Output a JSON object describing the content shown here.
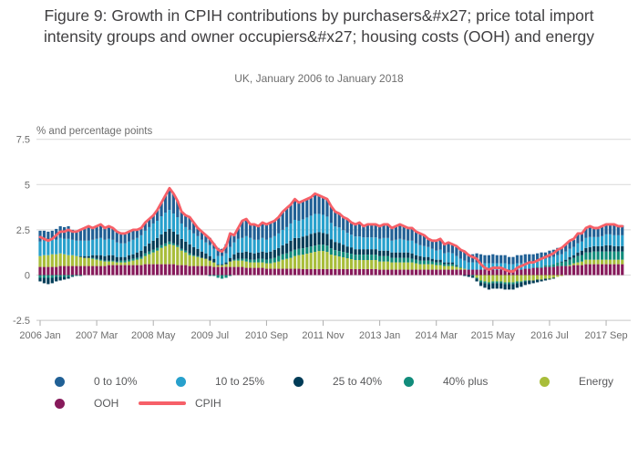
{
  "header": {
    "title": "Figure 9: Growth in CPIH contributions by purchasers&#x27; price total import intensity groups and owner occupiers&#x27; housing costs (OOH) and energy",
    "subtitle": "UK, January 2006 to January 2018"
  },
  "legend": {
    "items": [
      {
        "label": "0 to 10%",
        "color": "#206095",
        "swatch": "dot"
      },
      {
        "label": "10 to 25%",
        "color": "#27A0CC",
        "swatch": "dot"
      },
      {
        "label": "25 to 40%",
        "color": "#003C57",
        "swatch": "dot"
      },
      {
        "label": "40% plus",
        "color": "#118C7B",
        "swatch": "dot"
      },
      {
        "label": "Energy",
        "color": "#A8BD3A",
        "swatch": "dot"
      },
      {
        "label": "OOH",
        "color": "#871A5B",
        "swatch": "dot"
      },
      {
        "label": "CPIH",
        "color": "#F66068",
        "swatch": "line"
      }
    ]
  },
  "chart_data": {
    "type": "bar",
    "stacked": true,
    "unit_label": "% and percentage points",
    "x_start": "2006 Jan",
    "x_end": "2018 Jan",
    "months_count": 145,
    "ylim": [
      -2.5,
      7.5
    ],
    "yticks": [
      -2.5,
      0,
      2.5,
      5,
      7.5
    ],
    "ytick_labels": [
      "-2.5",
      "0",
      "2.5",
      "5",
      "7.5"
    ],
    "xtick_indices": [
      0,
      14,
      28,
      42,
      56,
      70,
      84,
      98,
      112,
      126,
      140
    ],
    "xtick_labels": [
      "2006 Jan",
      "2007 Mar",
      "2008 May",
      "2009 Jul",
      "2010 Sep",
      "2011 Nov",
      "2013 Jan",
      "2014 Mar",
      "2015 May",
      "2016 Jul",
      "2017 Sep"
    ],
    "grid": true,
    "legend_position": "bottom",
    "series": [
      {
        "name": "OOH",
        "color": "#871A5B",
        "values": [
          0.45,
          0.45,
          0.45,
          0.45,
          0.45,
          0.5,
          0.5,
          0.5,
          0.5,
          0.5,
          0.5,
          0.5,
          0.5,
          0.5,
          0.5,
          0.5,
          0.5,
          0.55,
          0.55,
          0.55,
          0.55,
          0.55,
          0.55,
          0.55,
          0.55,
          0.55,
          0.6,
          0.6,
          0.6,
          0.6,
          0.6,
          0.6,
          0.6,
          0.6,
          0.55,
          0.55,
          0.55,
          0.5,
          0.5,
          0.5,
          0.5,
          0.5,
          0.5,
          0.45,
          0.45,
          0.45,
          0.45,
          0.45,
          0.45,
          0.45,
          0.45,
          0.4,
          0.4,
          0.4,
          0.4,
          0.4,
          0.35,
          0.35,
          0.35,
          0.35,
          0.35,
          0.35,
          0.35,
          0.35,
          0.35,
          0.33,
          0.33,
          0.33,
          0.33,
          0.33,
          0.33,
          0.33,
          0.33,
          0.33,
          0.33,
          0.33,
          0.33,
          0.33,
          0.33,
          0.33,
          0.33,
          0.33,
          0.33,
          0.33,
          0.3,
          0.3,
          0.3,
          0.3,
          0.3,
          0.3,
          0.3,
          0.3,
          0.3,
          0.3,
          0.3,
          0.3,
          0.3,
          0.3,
          0.3,
          0.3,
          0.3,
          0.3,
          0.3,
          0.3,
          0.3,
          0.3,
          0.3,
          0.3,
          0.3,
          0.3,
          0.3,
          0.3,
          0.3,
          0.3,
          0.3,
          0.3,
          0.3,
          0.3,
          0.3,
          0.3,
          0.35,
          0.35,
          0.4,
          0.4,
          0.4,
          0.45,
          0.45,
          0.45,
          0.5,
          0.5,
          0.5,
          0.5,
          0.55,
          0.55,
          0.55,
          0.6,
          0.6,
          0.6,
          0.6,
          0.6,
          0.6,
          0.6,
          0.6,
          0.6,
          0.6
        ]
      },
      {
        "name": "Energy",
        "color": "#A8BD3A",
        "values": [
          0.6,
          0.65,
          0.65,
          0.7,
          0.7,
          0.7,
          0.65,
          0.6,
          0.6,
          0.55,
          0.5,
          0.45,
          0.45,
          0.4,
          0.35,
          0.3,
          0.25,
          0.2,
          0.2,
          0.15,
          0.15,
          0.15,
          0.2,
          0.25,
          0.3,
          0.35,
          0.45,
          0.55,
          0.65,
          0.75,
          0.9,
          1.0,
          1.1,
          1.05,
          1.0,
          0.8,
          0.7,
          0.6,
          0.55,
          0.5,
          0.45,
          0.4,
          0.3,
          0.25,
          0.1,
          0.1,
          0.15,
          0.3,
          0.35,
          0.35,
          0.35,
          0.35,
          0.3,
          0.3,
          0.3,
          0.3,
          0.3,
          0.3,
          0.35,
          0.4,
          0.5,
          0.55,
          0.6,
          0.7,
          0.75,
          0.8,
          0.85,
          0.9,
          0.95,
          1.0,
          1.0,
          0.95,
          0.8,
          0.75,
          0.7,
          0.65,
          0.6,
          0.55,
          0.5,
          0.5,
          0.5,
          0.5,
          0.5,
          0.5,
          0.45,
          0.45,
          0.45,
          0.4,
          0.4,
          0.4,
          0.4,
          0.4,
          0.4,
          0.35,
          0.3,
          0.3,
          0.3,
          0.3,
          0.25,
          0.25,
          0.2,
          0.2,
          0.2,
          0.15,
          0.1,
          0.05,
          0.0,
          0.0,
          -0.15,
          -0.3,
          -0.35,
          -0.4,
          -0.35,
          -0.35,
          -0.35,
          -0.4,
          -0.4,
          -0.4,
          -0.35,
          -0.35,
          -0.3,
          -0.3,
          -0.3,
          -0.25,
          -0.25,
          -0.2,
          -0.2,
          -0.15,
          -0.1,
          -0.05,
          0.0,
          0.05,
          0.1,
          0.15,
          0.2,
          0.25,
          0.25,
          0.25,
          0.25,
          0.25,
          0.25,
          0.25,
          0.25,
          0.25,
          0.25
        ]
      },
      {
        "name": "40% plus",
        "color": "#118C7B",
        "values": [
          -0.15,
          -0.15,
          -0.15,
          -0.15,
          -0.1,
          -0.1,
          -0.1,
          -0.1,
          -0.05,
          -0.05,
          -0.05,
          0.0,
          0.0,
          0.05,
          0.05,
          0.05,
          0.05,
          0.05,
          0.05,
          0.05,
          0.1,
          0.1,
          0.1,
          0.1,
          0.1,
          0.1,
          0.15,
          0.15,
          0.15,
          0.15,
          0.15,
          0.15,
          0.15,
          0.1,
          0.1,
          0.1,
          0.1,
          0.1,
          0.05,
          0.05,
          0.0,
          0.0,
          -0.05,
          -0.05,
          -0.15,
          -0.2,
          -0.15,
          -0.05,
          0.05,
          0.1,
          0.1,
          0.15,
          0.15,
          0.15,
          0.2,
          0.2,
          0.2,
          0.25,
          0.25,
          0.3,
          0.3,
          0.3,
          0.35,
          0.35,
          0.35,
          0.35,
          0.35,
          0.35,
          0.35,
          0.35,
          0.35,
          0.35,
          0.35,
          0.3,
          0.3,
          0.3,
          0.3,
          0.3,
          0.3,
          0.3,
          0.3,
          0.3,
          0.3,
          0.3,
          0.3,
          0.3,
          0.3,
          0.25,
          0.25,
          0.25,
          0.25,
          0.25,
          0.2,
          0.2,
          0.2,
          0.2,
          0.2,
          0.15,
          0.15,
          0.15,
          0.1,
          0.1,
          0.1,
          0.05,
          0.05,
          0.0,
          0.0,
          -0.05,
          -0.05,
          -0.1,
          -0.1,
          -0.1,
          -0.1,
          -0.1,
          -0.1,
          -0.1,
          -0.1,
          -0.1,
          -0.1,
          -0.05,
          -0.05,
          0.0,
          0.0,
          0.05,
          0.05,
          0.1,
          0.1,
          0.15,
          0.2,
          0.2,
          0.25,
          0.3,
          0.3,
          0.35,
          0.35,
          0.4,
          0.4,
          0.45,
          0.45,
          0.45,
          0.45,
          0.45,
          0.45,
          0.45,
          0.45
        ]
      },
      {
        "name": "25 to 40%",
        "color": "#003C57",
        "values": [
          -0.2,
          -0.3,
          -0.35,
          -0.3,
          -0.25,
          -0.2,
          -0.15,
          -0.1,
          -0.05,
          0.0,
          0.05,
          0.1,
          0.1,
          0.15,
          0.2,
          0.25,
          0.25,
          0.3,
          0.3,
          0.25,
          0.2,
          0.2,
          0.25,
          0.25,
          0.3,
          0.35,
          0.4,
          0.45,
          0.5,
          0.55,
          0.6,
          0.65,
          0.7,
          0.65,
          0.6,
          0.55,
          0.5,
          0.5,
          0.45,
          0.4,
          0.35,
          0.3,
          0.25,
          0.2,
          0.05,
          0.05,
          0.1,
          0.2,
          0.3,
          0.35,
          0.35,
          0.4,
          0.4,
          0.35,
          0.35,
          0.4,
          0.4,
          0.4,
          0.45,
          0.45,
          0.5,
          0.55,
          0.6,
          0.65,
          0.6,
          0.65,
          0.65,
          0.7,
          0.7,
          0.7,
          0.65,
          0.65,
          0.5,
          0.45,
          0.45,
          0.4,
          0.35,
          0.35,
          0.3,
          0.3,
          0.3,
          0.3,
          0.3,
          0.3,
          0.3,
          0.3,
          0.3,
          0.3,
          0.3,
          0.3,
          0.3,
          0.3,
          0.3,
          0.25,
          0.25,
          0.2,
          0.2,
          0.15,
          0.15,
          0.15,
          0.1,
          0.1,
          0.1,
          0.05,
          0.0,
          -0.05,
          -0.1,
          -0.1,
          -0.15,
          -0.2,
          -0.25,
          -0.3,
          -0.3,
          -0.3,
          -0.3,
          -0.3,
          -0.3,
          -0.3,
          -0.25,
          -0.25,
          -0.2,
          -0.2,
          -0.15,
          -0.15,
          -0.1,
          -0.1,
          -0.05,
          -0.05,
          0.0,
          0.05,
          0.1,
          0.15,
          0.15,
          0.2,
          0.25,
          0.25,
          0.3,
          0.3,
          0.3,
          0.3,
          0.35,
          0.35,
          0.3,
          0.3,
          0.3
        ]
      },
      {
        "name": "10 to 25%",
        "color": "#27A0CC",
        "values": [
          0.8,
          0.8,
          0.8,
          0.8,
          0.8,
          0.85,
          0.85,
          0.9,
          0.85,
          0.85,
          0.85,
          0.85,
          0.85,
          0.85,
          0.9,
          0.95,
          0.9,
          0.9,
          0.85,
          0.8,
          0.75,
          0.75,
          0.75,
          0.8,
          0.8,
          0.85,
          0.85,
          0.9,
          0.95,
          0.95,
          1.0,
          1.05,
          1.05,
          1.0,
          0.95,
          0.85,
          0.8,
          0.8,
          0.75,
          0.7,
          0.65,
          0.6,
          0.6,
          0.55,
          0.45,
          0.45,
          0.5,
          0.6,
          0.65,
          0.75,
          0.8,
          0.85,
          0.8,
          0.75,
          0.7,
          0.75,
          0.7,
          0.75,
          0.75,
          0.8,
          0.85,
          0.9,
          0.95,
          1.0,
          0.95,
          0.95,
          1.0,
          1.0,
          1.05,
          1.0,
          1.0,
          0.95,
          0.9,
          0.85,
          0.85,
          0.8,
          0.75,
          0.7,
          0.7,
          0.7,
          0.65,
          0.65,
          0.65,
          0.65,
          0.65,
          0.7,
          0.7,
          0.65,
          0.7,
          0.75,
          0.7,
          0.65,
          0.7,
          0.65,
          0.6,
          0.6,
          0.55,
          0.55,
          0.5,
          0.55,
          0.5,
          0.55,
          0.5,
          0.5,
          0.45,
          0.45,
          0.4,
          0.4,
          0.4,
          0.35,
          0.35,
          0.35,
          0.35,
          0.35,
          0.35,
          0.35,
          0.3,
          0.3,
          0.35,
          0.35,
          0.35,
          0.35,
          0.35,
          0.35,
          0.4,
          0.35,
          0.4,
          0.4,
          0.4,
          0.4,
          0.45,
          0.45,
          0.45,
          0.5,
          0.5,
          0.55,
          0.55,
          0.5,
          0.5,
          0.55,
          0.6,
          0.6,
          0.6,
          0.6,
          0.6
        ]
      },
      {
        "name": "0 to 10%",
        "color": "#206095",
        "values": [
          0.6,
          0.55,
          0.5,
          0.5,
          0.6,
          0.65,
          0.65,
          0.7,
          0.55,
          0.55,
          0.65,
          0.7,
          0.8,
          0.65,
          0.7,
          0.75,
          0.65,
          0.7,
          0.65,
          0.6,
          0.55,
          0.55,
          0.55,
          0.55,
          0.45,
          0.4,
          0.45,
          0.45,
          0.45,
          0.6,
          0.75,
          0.95,
          1.2,
          1.1,
          0.9,
          0.65,
          0.65,
          0.7,
          0.6,
          0.45,
          0.45,
          0.4,
          0.4,
          0.3,
          0.45,
          0.4,
          0.5,
          0.75,
          0.4,
          0.6,
          0.95,
          0.95,
          0.75,
          0.85,
          0.75,
          0.85,
          0.85,
          0.85,
          0.85,
          0.9,
          1.0,
          1.05,
          1.05,
          1.15,
          1.0,
          1.0,
          1.0,
          1.0,
          1.1,
          1.0,
          0.95,
          0.95,
          0.9,
          0.85,
          0.8,
          0.75,
          0.75,
          0.7,
          0.7,
          0.75,
          0.65,
          0.7,
          0.7,
          0.7,
          0.7,
          0.75,
          0.75,
          0.7,
          0.75,
          0.8,
          0.75,
          0.7,
          0.7,
          0.65,
          0.65,
          0.6,
          0.45,
          0.5,
          0.5,
          0.55,
          0.5,
          0.55,
          0.5,
          0.5,
          0.5,
          0.5,
          0.45,
          0.45,
          0.5,
          0.5,
          0.45,
          0.45,
          0.5,
          0.45,
          0.45,
          0.45,
          0.4,
          0.4,
          0.45,
          0.45,
          0.45,
          0.45,
          0.4,
          0.4,
          0.4,
          0.35,
          0.4,
          0.4,
          0.4,
          0.4,
          0.4,
          0.4,
          0.4,
          0.5,
          0.45,
          0.5,
          0.55,
          0.5,
          0.5,
          0.5,
          0.55,
          0.55,
          0.55,
          0.5,
          0.55
        ]
      }
    ],
    "line_series": {
      "name": "CPIH",
      "color": "#F66068",
      "values": [
        2.1,
        2.0,
        1.9,
        2.0,
        2.2,
        2.4,
        2.4,
        2.5,
        2.4,
        2.4,
        2.5,
        2.6,
        2.7,
        2.6,
        2.7,
        2.8,
        2.6,
        2.7,
        2.6,
        2.4,
        2.3,
        2.3,
        2.4,
        2.5,
        2.5,
        2.6,
        2.9,
        3.1,
        3.3,
        3.6,
        4.0,
        4.4,
        4.8,
        4.5,
        4.1,
        3.5,
        3.3,
        3.2,
        2.9,
        2.6,
        2.4,
        2.2,
        2.0,
        1.7,
        1.4,
        1.3,
        1.6,
        2.3,
        2.2,
        2.6,
        3.0,
        3.1,
        2.8,
        2.8,
        2.7,
        2.9,
        2.8,
        2.9,
        3.0,
        3.2,
        3.5,
        3.7,
        3.9,
        4.2,
        4.0,
        4.1,
        4.2,
        4.3,
        4.5,
        4.4,
        4.3,
        4.2,
        3.8,
        3.5,
        3.4,
        3.2,
        3.1,
        2.9,
        2.8,
        2.9,
        2.7,
        2.8,
        2.8,
        2.8,
        2.7,
        2.8,
        2.8,
        2.6,
        2.7,
        2.8,
        2.7,
        2.6,
        2.6,
        2.4,
        2.3,
        2.2,
        2.0,
        1.9,
        1.9,
        2.0,
        1.7,
        1.8,
        1.7,
        1.6,
        1.4,
        1.3,
        1.1,
        1.0,
        0.9,
        0.6,
        0.4,
        0.3,
        0.4,
        0.4,
        0.4,
        0.3,
        0.2,
        0.2,
        0.4,
        0.5,
        0.6,
        0.7,
        0.7,
        0.8,
        0.9,
        1.0,
        1.1,
        1.2,
        1.4,
        1.5,
        1.7,
        1.9,
        2.0,
        2.3,
        2.3,
        2.6,
        2.7,
        2.6,
        2.6,
        2.7,
        2.8,
        2.8,
        2.8,
        2.7,
        2.7
      ]
    },
    "colors": {
      "grid": "#d9d9d9",
      "axis_line": "#c7c7c7",
      "tick_text": "#6d6d6d"
    }
  }
}
